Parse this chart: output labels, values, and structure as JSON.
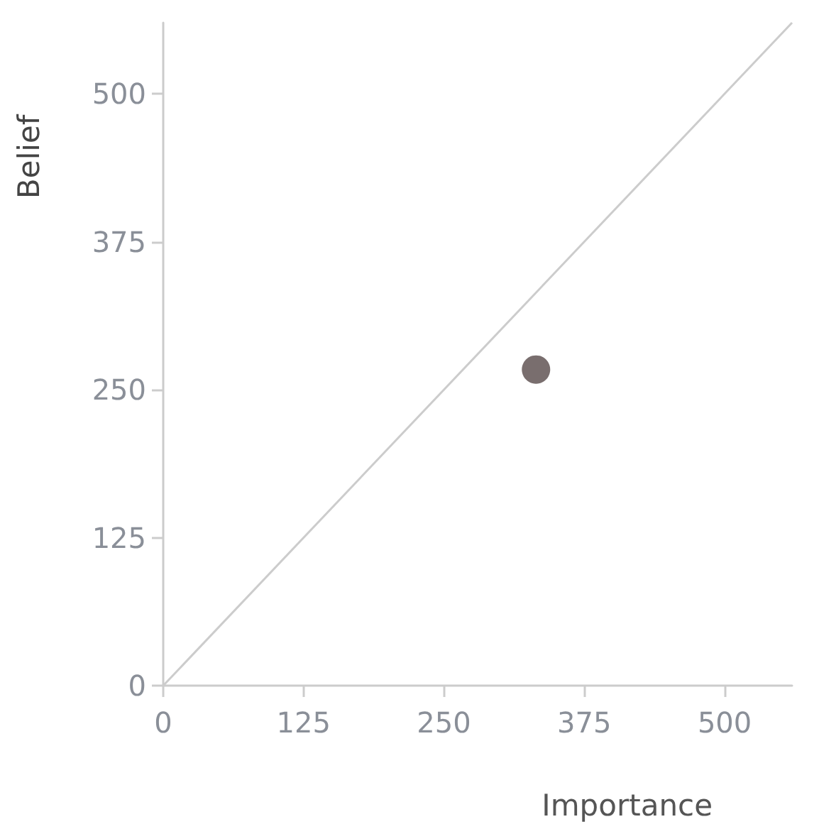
{
  "chart_data": {
    "type": "scatter",
    "xlabel": "Importance",
    "ylabel": "Belief",
    "xlim": [
      0,
      560
    ],
    "ylim": [
      0,
      560
    ],
    "xticks": [
      0,
      125,
      250,
      375,
      500
    ],
    "yticks": [
      0,
      125,
      250,
      375,
      500
    ],
    "grid": false,
    "series": [
      {
        "type": "scatter",
        "color": "#574a4a",
        "marker": "circle",
        "x": [
          332
        ],
        "values": [
          267
        ]
      },
      {
        "type": "line",
        "color": "#cccccc",
        "marker": "none",
        "line_style": "solid",
        "x": [
          0,
          560
        ],
        "values": [
          0,
          560
        ]
      }
    ]
  }
}
